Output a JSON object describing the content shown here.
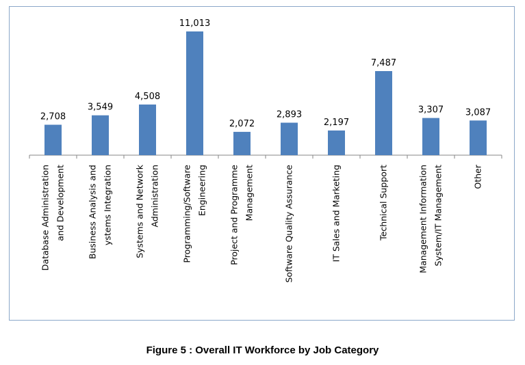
{
  "chart_data": {
    "type": "bar",
    "categories": [
      [
        "Database Administration",
        "and Development"
      ],
      [
        "Business Analysis and",
        "ystems Integration"
      ],
      [
        "Systems and Network",
        "Administration"
      ],
      [
        "Programming/Software",
        "Engineering"
      ],
      [
        "Project and Programme",
        "Management"
      ],
      [
        "Software  Quality Assurance"
      ],
      [
        "IT Sales and Marketing"
      ],
      [
        "Technical Support"
      ],
      [
        "Management Information",
        "System/IT Management"
      ],
      [
        "Other"
      ]
    ],
    "values": [
      2708,
      3549,
      4508,
      11013,
      2072,
      2893,
      2197,
      7487,
      3307,
      3087
    ],
    "value_labels": [
      "2,708",
      "3,549",
      "4,508",
      "11,013",
      "2,072",
      "2,893",
      "2,197",
      "7,487",
      "3,307",
      "3,087"
    ],
    "ylim": [
      0,
      11013
    ],
    "grid": false,
    "bar_color": "#4f81bd"
  },
  "caption": "Figure 5 : Overall IT Workforce by Job Category"
}
